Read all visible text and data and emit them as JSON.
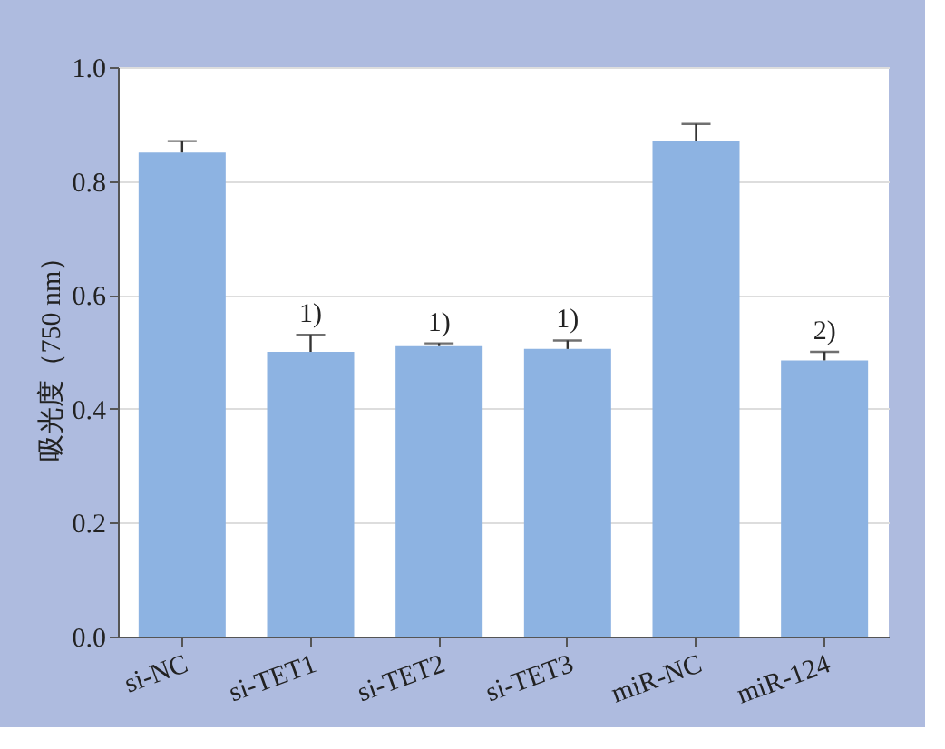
{
  "chart_data": {
    "type": "bar",
    "ylabel": "吸光度（750 nm）",
    "categories": [
      "si-NC",
      "si-TET1",
      "si-TET2",
      "si-TET3",
      "miR-NC",
      "miR-124"
    ],
    "values": [
      0.85,
      0.5,
      0.51,
      0.505,
      0.87,
      0.485
    ],
    "errors": [
      [
        0.85,
        0.87
      ],
      [
        0.5,
        0.53
      ],
      [
        0.51,
        0.515
      ],
      [
        0.505,
        0.52
      ],
      [
        0.87,
        0.9
      ],
      [
        0.485,
        0.5
      ]
    ],
    "color": "#8db3e2",
    "ylim": [
      0,
      1.0
    ],
    "yticks": [
      {
        "value": 0,
        "label": "0.0"
      },
      0.2,
      0.4,
      0.6,
      0.8,
      {
        "value": 1.0,
        "label": "1.0"
      }
    ],
    "grid": "y",
    "annotations": [
      {
        "text": "1)",
        "x": "si-TET1",
        "y": 0.53
      },
      {
        "text": "1)",
        "x": "si-TET2",
        "y": 0.515
      },
      {
        "text": "1)",
        "x": "si-TET3",
        "y": 0.52
      },
      {
        "text": "2)",
        "x": "miR-124",
        "y": 0.5
      }
    ]
  }
}
